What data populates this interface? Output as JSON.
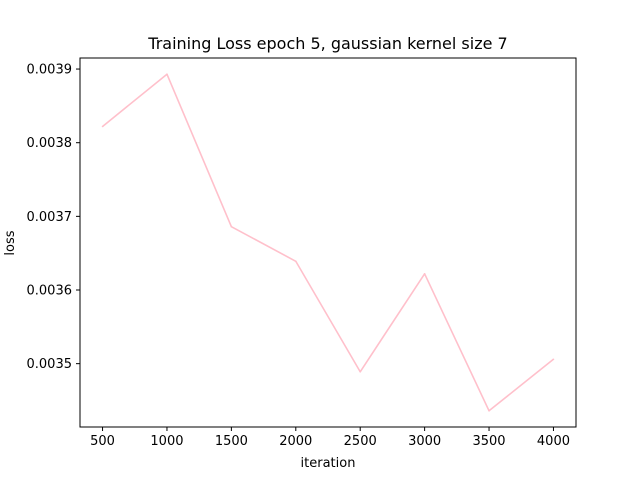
{
  "chart_data": {
    "type": "line",
    "title": "Training Loss epoch 5, gaussian kernel size 7",
    "xlabel": "iteration",
    "ylabel": "loss",
    "x": [
      500,
      1000,
      1500,
      2000,
      2500,
      3000,
      3500,
      4000
    ],
    "xticks": [
      "500",
      "1000",
      "1500",
      "2000",
      "2500",
      "3000",
      "3500",
      "4000"
    ],
    "yticks": [
      "0.0035",
      "0.0036",
      "0.0037",
      "0.0038",
      "0.0039"
    ],
    "xlim": [
      325,
      4175
    ],
    "ylim": [
      0.003414,
      0.003915
    ],
    "series": [
      {
        "values": [
          0.003822,
          0.003893,
          0.003686,
          0.003639,
          0.003489,
          0.003622,
          0.003436,
          0.003506
        ],
        "color": "#ffc0cb"
      }
    ],
    "grid": false,
    "legend": "none"
  }
}
